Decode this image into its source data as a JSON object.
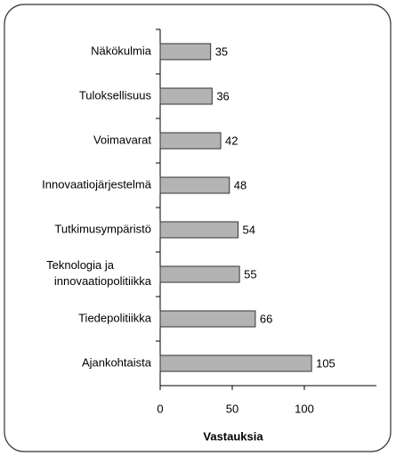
{
  "chart_data": {
    "type": "bar",
    "orientation": "horizontal",
    "categories": [
      "Näkökulmia",
      "Tuloksellisuus",
      "Voimavarat",
      "Innovaatiojärjestelmä",
      "Tutkimusympäristö",
      "Teknologia ja\ninnovaatiopolitiikka",
      "Tiedepolitiikka",
      "Ajankohtaista"
    ],
    "values": [
      35,
      36,
      42,
      48,
      54,
      55,
      66,
      105
    ],
    "color": "#b3b3b3",
    "xlim": [
      0,
      150
    ],
    "xticks": [
      0,
      50,
      100
    ],
    "xlabel": "Vastauksia"
  }
}
